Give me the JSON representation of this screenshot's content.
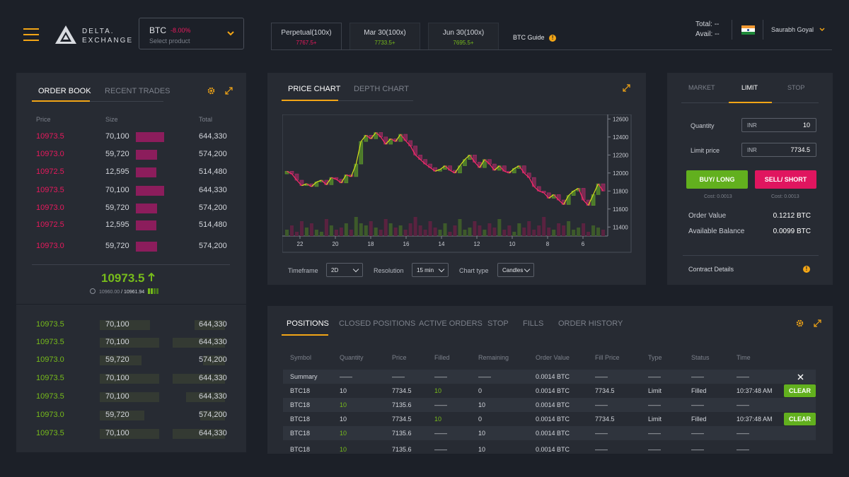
{
  "header": {
    "logo_line1": "DELTA.",
    "logo_line2": "EXCHANGE",
    "product": {
      "symbol": "BTC",
      "change": "-8.00%",
      "placeholder": "Select product"
    },
    "tabs": [
      {
        "label": "Perpetual(100x)",
        "price": "7767.5+",
        "price_color": "#e8195d"
      },
      {
        "label": "Mar 30(100x)",
        "price": "7733.5+",
        "price_color": "#77bb1b"
      },
      {
        "label": "Jun 30(100x)",
        "price": "7695.5+",
        "price_color": "#77bb1b"
      }
    ],
    "guide_label": "BTC Guide",
    "total_label": "Total:",
    "total_value": "--",
    "avail_label": "Avail:",
    "avail_value": "--",
    "user_name": "Saurabh Goyal"
  },
  "orderbook": {
    "tab_active": "ORDER BOOK",
    "tab_other": "RECENT TRADES",
    "col_price": "Price",
    "col_size": "Size",
    "col_total": "Total",
    "asks": [
      {
        "price": "10973.5",
        "size": "70,100",
        "total": "644,330",
        "depth": 1.0
      },
      {
        "price": "10973.0",
        "size": "59,720",
        "total": "574,200",
        "depth": 0.75
      },
      {
        "price": "10972.5",
        "size": "12,595",
        "total": "514,480",
        "depth": 0.72
      },
      {
        "price": "10973.5",
        "size": "70,100",
        "total": "644,330",
        "depth": 1.0
      },
      {
        "price": "10973.0",
        "size": "59,720",
        "total": "574,200",
        "depth": 0.75
      },
      {
        "price": "10972.5",
        "size": "12,595",
        "total": "514,480",
        "depth": 0.72
      },
      {
        "price": "10973.0",
        "size": "59,720",
        "total": "574,200",
        "depth": 0.75
      }
    ],
    "last_price": "10973.5",
    "index_price": "10960.00",
    "mark_price": "10961.94",
    "bids": [
      {
        "price": "10973.5",
        "size": "70,100",
        "total": "644,330",
        "depth": 0.55
      },
      {
        "price": "10973.5",
        "size": "70,100",
        "total": "644,330",
        "depth": 0.95
      },
      {
        "price": "10973.0",
        "size": "59,720",
        "total": "574,200",
        "depth": 0.4
      },
      {
        "price": "10973.5",
        "size": "70,100",
        "total": "644,330",
        "depth": 0.95
      },
      {
        "price": "10973.5",
        "size": "70,100",
        "total": "644,330",
        "depth": 0.7
      },
      {
        "price": "10973.0",
        "size": "59,720",
        "total": "574,200",
        "depth": 0.45
      },
      {
        "price": "10973.5",
        "size": "70,100",
        "total": "644,330",
        "depth": 0.95
      }
    ]
  },
  "chart_panel": {
    "tab_active": "PRICE CHART",
    "tab_other": "DEPTH CHART",
    "timeframe_label": "Timeframe",
    "timeframe_value": "2D",
    "resolution_label": "Resolution",
    "resolution_value": "15 min",
    "charttype_label": "Chart type",
    "charttype_value": "Candles"
  },
  "chart_data": {
    "type": "candlestick",
    "x_ticks": [
      "22",
      "20",
      "18",
      "16",
      "14",
      "12",
      "10",
      "8",
      "6"
    ],
    "y_ticks": [
      12600,
      12400,
      12200,
      12000,
      11800,
      11600,
      11400
    ],
    "ylim": [
      11300,
      12650
    ],
    "closes": [
      12020,
      11990,
      11920,
      11860,
      11880,
      11850,
      11900,
      11920,
      11870,
      11950,
      11930,
      11890,
      11980,
      11960,
      12100,
      12350,
      12420,
      12380,
      12450,
      12400,
      12320,
      12380,
      12350,
      12430,
      12360,
      12300,
      12200,
      12150,
      12100,
      12060,
      12020,
      12040,
      12080,
      12030,
      12000,
      12080,
      12150,
      12200,
      12120,
      12060,
      12150,
      12100,
      12030,
      12080,
      12020,
      12000,
      12050,
      12080,
      12000,
      11950,
      11850,
      11800,
      11780,
      11720,
      11760,
      11700,
      11650,
      11750,
      11800,
      11830,
      11700,
      11640,
      11760,
      11880,
      11800
    ],
    "volume_max": 1.0,
    "volumes": [
      0.3,
      0.5,
      0.2,
      0.7,
      0.4,
      0.6,
      0.3,
      0.2,
      0.8,
      0.5,
      0.3,
      0.4,
      0.6,
      0.3,
      0.9,
      0.6,
      0.5,
      0.7,
      0.4,
      0.3,
      0.8,
      0.6,
      0.4,
      0.5,
      0.3,
      0.6,
      0.9,
      0.5,
      0.3,
      0.7,
      0.4,
      0.3,
      0.6,
      0.2,
      0.5,
      0.8,
      0.3,
      0.4,
      0.7,
      0.5,
      0.3,
      0.6,
      0.4,
      0.8,
      0.3,
      0.5,
      0.2,
      0.6,
      0.4,
      0.7,
      0.3,
      0.5,
      0.9,
      0.4,
      0.3,
      0.6,
      0.5,
      0.7,
      0.3,
      0.4,
      0.6,
      0.2,
      0.5,
      0.4,
      0.3
    ]
  },
  "order_form": {
    "tabs": [
      "MARKET",
      "LIMIT",
      "STOP"
    ],
    "quantity_label": "Quantity",
    "quantity_unit": "INR",
    "quantity_value": "10",
    "limit_label": "Limit price",
    "limit_unit": "INR",
    "limit_value": "7734.5",
    "buy_label": "BUY/ LONG",
    "sell_label": "SELL/ SHORT",
    "buy_cost": "Cost: 0.0013",
    "sell_cost": "Cost: 0.0013",
    "order_value_label": "Order Value",
    "order_value": "0.1212 BTC",
    "balance_label": "Available Balance",
    "balance_value": "0.0099 BTC",
    "contract_label": "Contract Details"
  },
  "positions": {
    "tabs": [
      "POSITIONS",
      "CLOSED POSITIONS",
      "ACTIVE ORDERS",
      "STOP",
      "FILLS",
      "ORDER HISTORY"
    ],
    "columns": [
      "Symbol",
      "Quantity",
      "Price",
      "Filled",
      "Remaining",
      "Order Value",
      "Fill Price",
      "Type",
      "Status",
      "Time"
    ],
    "rows": [
      {
        "symbol": "Summary",
        "qty": "——",
        "price": "——",
        "filled": "——",
        "remaining": "——",
        "value": "0.0014 BTC",
        "fill_price": "——",
        "type": "——",
        "status": "——",
        "time": "——",
        "action": "close"
      },
      {
        "symbol": "BTC18",
        "qty": "10",
        "price": "7734.5",
        "filled": "10",
        "remaining": "0",
        "value": "0.0014 BTC",
        "fill_price": "7734.5",
        "type": "Limit",
        "status": "Filled",
        "time": "10:37:48 AM",
        "action": "CLEAR"
      },
      {
        "symbol": "BTC18",
        "qty": "10",
        "price": "7135.6",
        "filled": "——",
        "remaining": "10",
        "value": "0.0014 BTC",
        "fill_price": "——",
        "type": "——",
        "status": "——",
        "time": "——",
        "action": ""
      },
      {
        "symbol": "BTC18",
        "qty": "10",
        "price": "7734.5",
        "filled": "10",
        "remaining": "0",
        "value": "0.0014 BTC",
        "fill_price": "7734.5",
        "type": "Limit",
        "status": "Filled",
        "time": "10:37:48 AM",
        "action": "CLEAR"
      },
      {
        "symbol": "BTC18",
        "qty": "10",
        "price": "7135.6",
        "filled": "——",
        "remaining": "10",
        "value": "0.0014 BTC",
        "fill_price": "——",
        "type": "——",
        "status": "——",
        "time": "——",
        "action": ""
      },
      {
        "symbol": "BTC18",
        "qty": "10",
        "price": "7135.6",
        "filled": "——",
        "remaining": "10",
        "value": "0.0014 BTC",
        "fill_price": "——",
        "type": "——",
        "status": "——",
        "time": "——",
        "action": ""
      }
    ]
  },
  "colors": {
    "accent": "#f2a516",
    "buy": "#77bb1b",
    "sell": "#e8195d",
    "panel": "#272b33",
    "background": "#1c2028"
  }
}
